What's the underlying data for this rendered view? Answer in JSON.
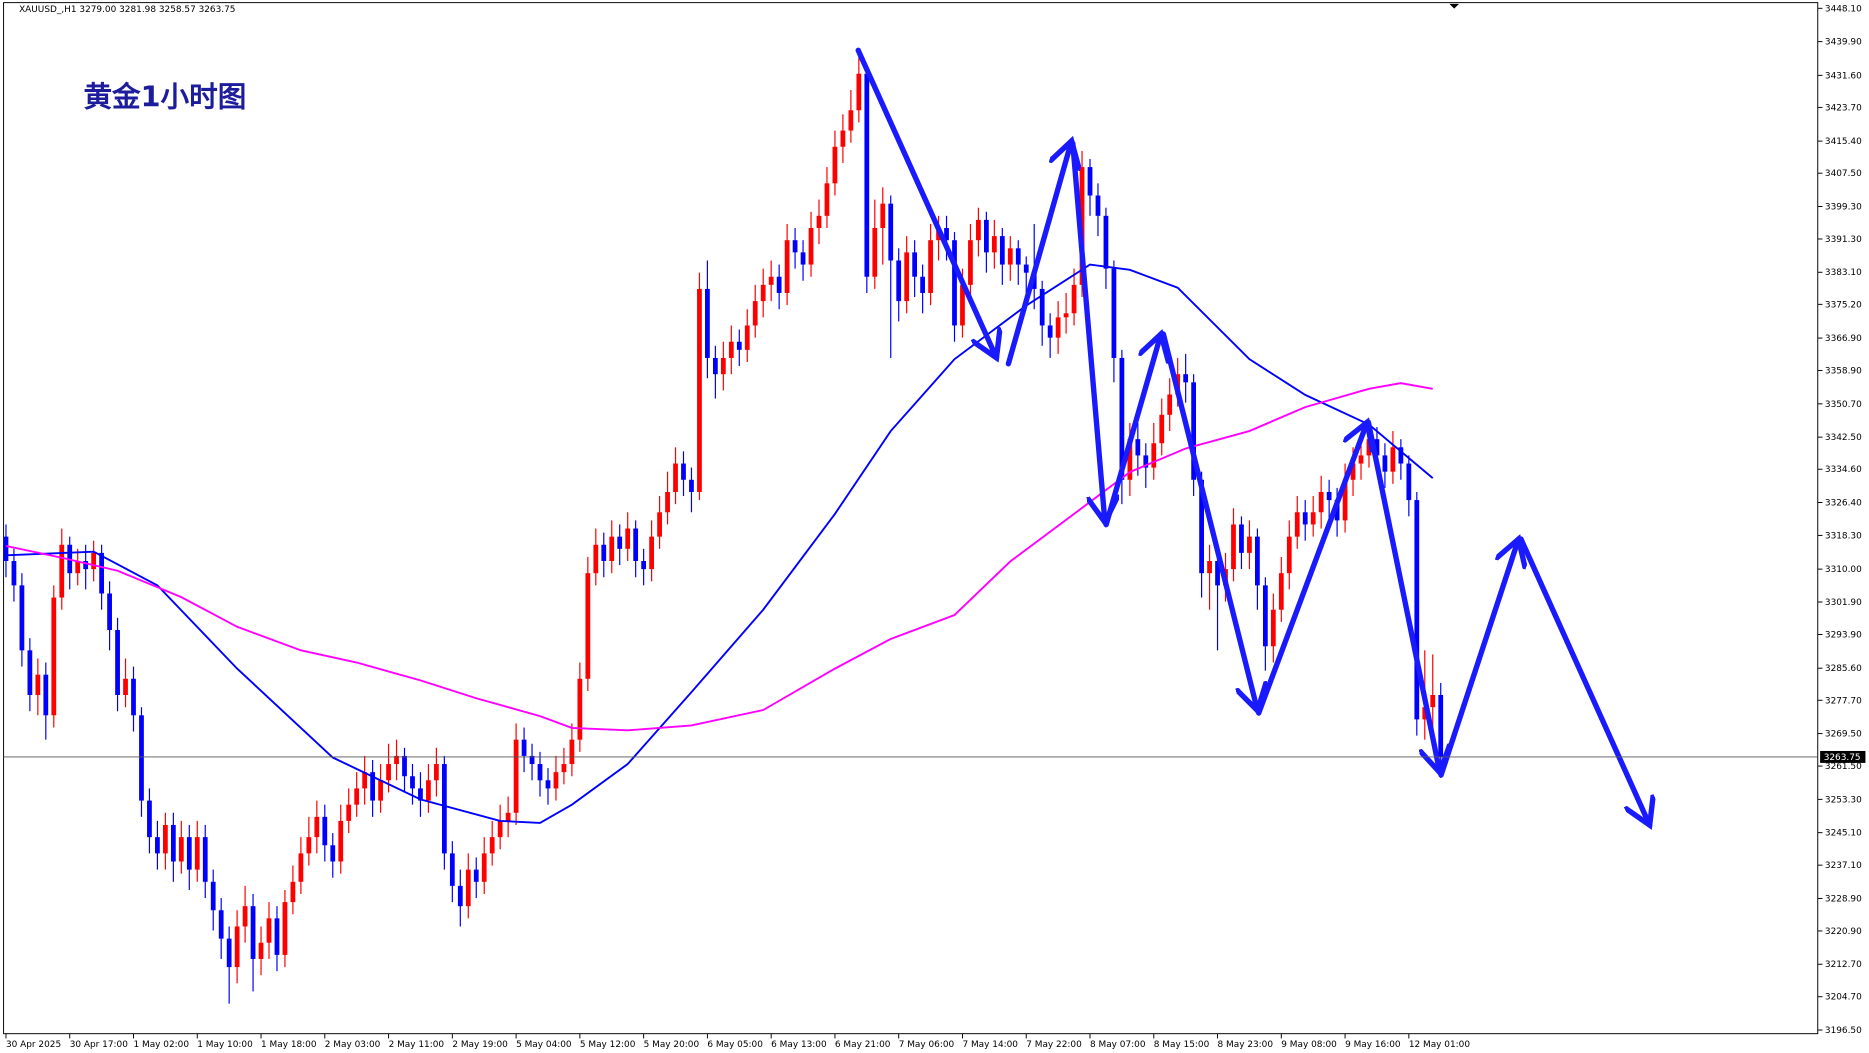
{
  "chart_data": {
    "type": "candlestick",
    "header": "XAUUSD_,H1  3279.00 3281.98 3258.57 3263.75",
    "title": "黄金1小时图",
    "up_color": "#ff0000",
    "down_color": "#0000ff",
    "open": [
      3318,
      3312,
      3306,
      3290,
      3279,
      3284,
      3274,
      3303,
      3316,
      3309,
      3312,
      3310,
      3314,
      3304,
      3295,
      3279,
      3283,
      3274,
      3253,
      3244,
      3240,
      3247,
      3238,
      3244,
      3236,
      3244,
      3233,
      3226,
      3219,
      3212,
      3222,
      3227,
      3214,
      3218,
      3224,
      3215,
      3228,
      3233,
      3240,
      3244,
      3249,
      3242,
      3238,
      3248,
      3252,
      3256,
      3260,
      3253,
      3258,
      3262,
      3264,
      3259,
      3256,
      3253,
      3258,
      3262,
      3240,
      3232,
      3227,
      3236,
      3233,
      3240,
      3244,
      3248,
      3250,
      3268,
      3264,
      3262,
      3258,
      3256,
      3260,
      3262,
      3268,
      3283,
      3309,
      3316,
      3312,
      3318,
      3315,
      3320,
      3312,
      3310,
      3318,
      3324,
      3329,
      3336,
      3332,
      3329,
      3379,
      3362,
      3358,
      3362,
      3366,
      3364,
      3370,
      3376,
      3380,
      3382,
      3378,
      3391,
      3388,
      3385,
      3394,
      3397,
      3405,
      3414,
      3418,
      3423,
      3432,
      3382,
      3394,
      3400,
      3386,
      3376,
      3388,
      3382,
      3378,
      3391,
      3394,
      3391,
      3370,
      3380,
      3391,
      3396,
      3388,
      3392,
      3385,
      3389,
      3385,
      3383,
      3379,
      3370,
      3367,
      3372,
      3373,
      3380,
      3409,
      3402,
      3397,
      3384,
      3362,
      3332,
      3342,
      3338,
      3335,
      3341,
      3348,
      3353,
      3358,
      3356,
      3332,
      3309,
      3312,
      3306,
      3310,
      3321,
      3314,
      3318,
      3306,
      3291,
      3300,
      3309,
      3318,
      3324,
      3321,
      3324,
      3329,
      3327,
      3322,
      3332,
      3336,
      3338,
      3342,
      3338,
      3334,
      3340,
      3336,
      3327,
      3273,
      3276,
      3279
    ],
    "high": [
      3321,
      3315,
      3309,
      3293,
      3288,
      3287,
      3306,
      3320,
      3318,
      3315,
      3316,
      3317,
      3316,
      3307,
      3298,
      3288,
      3286,
      3276,
      3256,
      3248,
      3250,
      3250,
      3248,
      3247,
      3248,
      3247,
      3236,
      3229,
      3222,
      3226,
      3232,
      3230,
      3222,
      3228,
      3227,
      3231,
      3237,
      3244,
      3249,
      3253,
      3252,
      3245,
      3252,
      3256,
      3260,
      3264,
      3263,
      3262,
      3267,
      3268,
      3266,
      3262,
      3260,
      3262,
      3266,
      3264,
      3243,
      3236,
      3240,
      3239,
      3244,
      3248,
      3252,
      3254,
      3272,
      3271,
      3267,
      3265,
      3261,
      3264,
      3266,
      3272,
      3287,
      3313,
      3320,
      3319,
      3322,
      3321,
      3324,
      3322,
      3315,
      3322,
      3328,
      3334,
      3340,
      3339,
      3335,
      3383,
      3386,
      3365,
      3366,
      3370,
      3369,
      3374,
      3380,
      3384,
      3386,
      3385,
      3395,
      3394,
      3391,
      3398,
      3401,
      3409,
      3418,
      3422,
      3428,
      3436,
      3434,
      3401,
      3404,
      3402,
      3389,
      3392,
      3391,
      3385,
      3395,
      3397,
      3397,
      3393,
      3384,
      3395,
      3399,
      3398,
      3396,
      3394,
      3392,
      3391,
      3387,
      3395,
      3381,
      3373,
      3376,
      3378,
      3384,
      3413,
      3411,
      3405,
      3399,
      3386,
      3364,
      3346,
      3346,
      3341,
      3346,
      3352,
      3357,
      3362,
      3363,
      3358,
      3334,
      3316,
      3315,
      3314,
      3325,
      3323,
      3322,
      3320,
      3308,
      3304,
      3313,
      3322,
      3328,
      3327,
      3328,
      3333,
      3332,
      3330,
      3336,
      3340,
      3342,
      3346,
      3345,
      3341,
      3344,
      3342,
      3338,
      3329,
      3290,
      3289,
      3281.98
    ],
    "low": [
      3308,
      3302,
      3286,
      3275,
      3274,
      3268,
      3271,
      3300,
      3305,
      3306,
      3305,
      3307,
      3300,
      3290,
      3275,
      3276,
      3270,
      3249,
      3240,
      3236,
      3236,
      3233,
      3235,
      3231,
      3233,
      3229,
      3221,
      3214,
      3203,
      3208,
      3218,
      3206,
      3210,
      3214,
      3211,
      3212,
      3225,
      3230,
      3237,
      3240,
      3238,
      3234,
      3235,
      3245,
      3249,
      3252,
      3249,
      3250,
      3255,
      3258,
      3255,
      3252,
      3249,
      3250,
      3254,
      3236,
      3228,
      3222,
      3224,
      3229,
      3230,
      3237,
      3241,
      3244,
      3247,
      3260,
      3258,
      3254,
      3252,
      3253,
      3257,
      3259,
      3265,
      3280,
      3306,
      3308,
      3309,
      3311,
      3312,
      3308,
      3306,
      3307,
      3315,
      3321,
      3326,
      3328,
      3324,
      3327,
      3357,
      3352,
      3354,
      3358,
      3360,
      3361,
      3367,
      3372,
      3376,
      3374,
      3375,
      3384,
      3381,
      3382,
      3390,
      3394,
      3402,
      3410,
      3415,
      3420,
      3378,
      3379,
      3385,
      3362,
      3371,
      3373,
      3377,
      3373,
      3375,
      3386,
      3386,
      3366,
      3367,
      3377,
      3387,
      3383,
      3384,
      3380,
      3381,
      3380,
      3378,
      3374,
      3365,
      3362,
      3363,
      3368,
      3370,
      3377,
      3397,
      3392,
      3379,
      3356,
      3326,
      3328,
      3333,
      3330,
      3332,
      3338,
      3344,
      3350,
      3351,
      3328,
      3303,
      3300,
      3290,
      3302,
      3307,
      3310,
      3310,
      3300,
      3285,
      3287,
      3297,
      3305,
      3315,
      3317,
      3318,
      3320,
      3322,
      3318,
      3319,
      3328,
      3332,
      3335,
      3334,
      3330,
      3331,
      3332,
      3323,
      3269,
      3268,
      3270,
      3258.57
    ],
    "close": [
      3312,
      3306,
      3290,
      3279,
      3284,
      3274,
      3303,
      3316,
      3309,
      3312,
      3310,
      3314,
      3304,
      3295,
      3279,
      3283,
      3274,
      3253,
      3244,
      3240,
      3247,
      3238,
      3244,
      3236,
      3244,
      3233,
      3226,
      3219,
      3212,
      3222,
      3227,
      3214,
      3218,
      3224,
      3215,
      3228,
      3233,
      3240,
      3244,
      3249,
      3242,
      3238,
      3248,
      3252,
      3256,
      3260,
      3253,
      3258,
      3262,
      3264,
      3259,
      3256,
      3253,
      3258,
      3262,
      3240,
      3232,
      3227,
      3236,
      3233,
      3240,
      3244,
      3248,
      3250,
      3268,
      3264,
      3262,
      3258,
      3256,
      3260,
      3262,
      3268,
      3283,
      3309,
      3316,
      3312,
      3318,
      3315,
      3320,
      3312,
      3310,
      3318,
      3324,
      3329,
      3336,
      3332,
      3329,
      3379,
      3362,
      3358,
      3362,
      3366,
      3364,
      3370,
      3376,
      3380,
      3382,
      3378,
      3391,
      3388,
      3385,
      3394,
      3397,
      3405,
      3414,
      3418,
      3423,
      3432,
      3382,
      3394,
      3400,
      3386,
      3376,
      3388,
      3382,
      3378,
      3391,
      3394,
      3391,
      3370,
      3380,
      3391,
      3396,
      3388,
      3392,
      3385,
      3389,
      3385,
      3383,
      3379,
      3370,
      3367,
      3372,
      3373,
      3380,
      3409,
      3402,
      3397,
      3384,
      3362,
      3332,
      3342,
      3338,
      3335,
      3341,
      3348,
      3353,
      3358,
      3356,
      3332,
      3309,
      3312,
      3306,
      3310,
      3321,
      3314,
      3318,
      3306,
      3291,
      3300,
      3309,
      3318,
      3324,
      3321,
      3324,
      3329,
      3327,
      3322,
      3332,
      3336,
      3338,
      3342,
      3338,
      3334,
      3340,
      3336,
      3327,
      3273,
      3276,
      3279,
      3263.75
    ],
    "moving_averages": [
      {
        "color": "#0000ff",
        "x": [
          0,
          11,
          19,
          29,
          41,
          52,
          62,
          67,
          71,
          78,
          86,
          95,
          104,
          111,
          119,
          128,
          136,
          141,
          147,
          156,
          163,
          171,
          179
        ],
        "values": [
          3313.4,
          3314.3,
          3306,
          3285.5,
          3263.6,
          3253.3,
          3248,
          3247.5,
          3252,
          3262,
          3279.7,
          3300,
          3323.6,
          3344,
          3361.7,
          3374.9,
          3385,
          3383.7,
          3379.3,
          3361.7,
          3352.9,
          3345.6,
          3332.4
        ]
      },
      {
        "color": "#ff00ff",
        "x": [
          0,
          7,
          14,
          22,
          29,
          37,
          44,
          52,
          59,
          67,
          71,
          78,
          86,
          95,
          104,
          111,
          119,
          126,
          134,
          141,
          148,
          156,
          163,
          171,
          175,
          179
        ],
        "values": [
          3315.7,
          3312.8,
          3309.6,
          3303.1,
          3295.8,
          3290,
          3287,
          3282.6,
          3278.2,
          3273.8,
          3270.9,
          3270.3,
          3271.5,
          3275.3,
          3285.5,
          3292.8,
          3298.7,
          3311.9,
          3323.6,
          3333.9,
          3339.7,
          3344,
          3349.9,
          3354.4,
          3355.8,
          3354.4
        ]
      }
    ],
    "current_price": 3263.75,
    "xlim": [
      -0.3,
      227.3
    ],
    "ylim": [
      3195.6,
      3449.5
    ],
    "xticks": [
      {
        "value": 0,
        "label": "30 Apr 2025"
      },
      {
        "value": 8,
        "label": "30 Apr 17:00"
      },
      {
        "value": 16,
        "label": "1 May 02:00"
      },
      {
        "value": 24,
        "label": "1 May 10:00"
      },
      {
        "value": 32,
        "label": "1 May 18:00"
      },
      {
        "value": 40,
        "label": "2 May 03:00"
      },
      {
        "value": 48,
        "label": "2 May 11:00"
      },
      {
        "value": 56,
        "label": "2 May 19:00"
      },
      {
        "value": 64,
        "label": "5 May 04:00"
      },
      {
        "value": 72,
        "label": "5 May 12:00"
      },
      {
        "value": 80,
        "label": "5 May 20:00"
      },
      {
        "value": 88,
        "label": "6 May 05:00"
      },
      {
        "value": 96,
        "label": "6 May 13:00"
      },
      {
        "value": 104,
        "label": "6 May 21:00"
      },
      {
        "value": 112,
        "label": "7 May 06:00"
      },
      {
        "value": 120,
        "label": "7 May 14:00"
      },
      {
        "value": 128,
        "label": "7 May 22:00"
      },
      {
        "value": 136,
        "label": "8 May 07:00"
      },
      {
        "value": 144,
        "label": "8 May 15:00"
      },
      {
        "value": 152,
        "label": "8 May 23:00"
      },
      {
        "value": 160,
        "label": "9 May 08:00"
      },
      {
        "value": 168,
        "label": "9 May 16:00"
      },
      {
        "value": 176,
        "label": "12 May 01:00"
      }
    ],
    "yticks": [
      {
        "value": 3448.1,
        "label": "3448.10"
      },
      {
        "value": 3439.9,
        "label": "3439.90"
      },
      {
        "value": 3431.6,
        "label": "3431.60"
      },
      {
        "value": 3423.7,
        "label": "3423.70"
      },
      {
        "value": 3415.4,
        "label": "3415.40"
      },
      {
        "value": 3407.5,
        "label": "3407.50"
      },
      {
        "value": 3399.3,
        "label": "3399.30"
      },
      {
        "value": 3391.3,
        "label": "3391.30"
      },
      {
        "value": 3383.1,
        "label": "3383.10"
      },
      {
        "value": 3375.2,
        "label": "3375.20"
      },
      {
        "value": 3366.9,
        "label": "3366.90"
      },
      {
        "value": 3358.9,
        "label": "3358.90"
      },
      {
        "value": 3350.7,
        "label": "3350.70"
      },
      {
        "value": 3342.5,
        "label": "3342.50"
      },
      {
        "value": 3334.6,
        "label": "3334.60"
      },
      {
        "value": 3326.4,
        "label": "3326.40"
      },
      {
        "value": 3318.3,
        "label": "3318.30"
      },
      {
        "value": 3310,
        "label": "3310.00"
      },
      {
        "value": 3301.9,
        "label": "3301.90"
      },
      {
        "value": 3293.9,
        "label": "3293.90"
      },
      {
        "value": 3285.6,
        "label": "3285.60"
      },
      {
        "value": 3277.7,
        "label": "3277.70"
      },
      {
        "value": 3269.5,
        "label": "3269.50"
      },
      {
        "value": 3261.5,
        "label": "3261.50"
      },
      {
        "value": 3253.3,
        "label": "3253.30"
      },
      {
        "value": 3245.1,
        "label": "3245.10"
      },
      {
        "value": 3237.1,
        "label": "3237.10"
      },
      {
        "value": 3228.9,
        "label": "3228.90"
      },
      {
        "value": 3220.9,
        "label": "3220.90"
      },
      {
        "value": 3212.7,
        "label": "3212.70"
      },
      {
        "value": 3204.7,
        "label": "3204.70"
      },
      {
        "value": 3196.5,
        "label": "3196.50"
      }
    ]
  }
}
